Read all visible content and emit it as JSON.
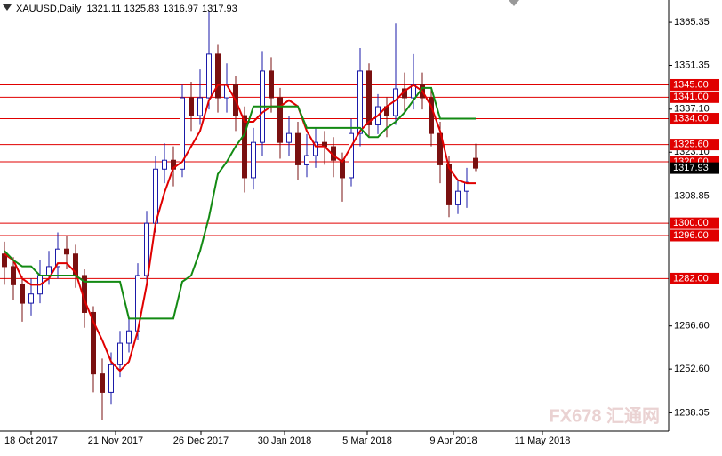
{
  "chart_data": {
    "type": "candlestick",
    "symbol": "XAUUSD,Daily",
    "x": [
      0,
      1,
      2,
      3,
      4,
      5,
      6,
      7,
      8,
      9,
      10,
      11,
      12,
      13,
      14,
      15,
      16,
      17,
      18,
      19,
      20,
      21,
      22,
      23,
      24,
      25,
      26,
      27,
      28,
      29,
      30,
      31,
      32,
      33,
      34,
      35,
      36,
      37,
      38,
      39,
      40,
      41,
      42,
      43,
      44,
      45,
      46,
      47,
      48,
      49,
      50,
      51,
      52,
      53
    ],
    "open": [
      1290.0,
      1285.9,
      1280.0,
      1274.0,
      1277.0,
      1283.0,
      1285.9,
      1291.6,
      1290.0,
      1283.0,
      1271.0,
      1251.0,
      1245.0,
      1254.0,
      1261.0,
      1265.0,
      1283.0,
      1300.0,
      1317.6,
      1320.5,
      1317.6,
      1340.8,
      1335.0,
      1340.8,
      1355.0,
      1340.8,
      1345.0,
      1335.0,
      1314.8,
      1326.3,
      1349.5,
      1340.8,
      1326.3,
      1329.2,
      1319.0,
      1322.0,
      1326.3,
      1324.9,
      1320.5,
      1314.8,
      1329.2,
      1349.5,
      1332.0,
      1337.9,
      1335.0,
      1343.7,
      1340.8,
      1345.0,
      1340.8,
      1329.2,
      1319.0,
      1306.0,
      1310.4,
      1321.11
    ],
    "high": [
      1294,
      1289,
      1283,
      1282,
      1288,
      1291,
      1297,
      1296,
      1293,
      1285,
      1273,
      1256,
      1258,
      1265,
      1270,
      1287,
      1304,
      1322,
      1326,
      1325,
      1345,
      1346,
      1350,
      1369,
      1358,
      1352,
      1348,
      1338,
      1331,
      1356,
      1354,
      1344,
      1335,
      1333,
      1329,
      1331,
      1330,
      1328,
      1323,
      1334,
      1357,
      1352,
      1342,
      1341,
      1365,
      1349,
      1355,
      1349,
      1344,
      1333,
      1322,
      1314,
      1318,
      1325.83
    ],
    "low": [
      1280,
      1275,
      1268,
      1270,
      1274,
      1280,
      1282,
      1285,
      1279,
      1266,
      1245,
      1236,
      1241,
      1250,
      1258,
      1262,
      1280,
      1297,
      1313,
      1312,
      1315,
      1330,
      1332,
      1337,
      1336,
      1336,
      1330,
      1310,
      1311,
      1322,
      1336,
      1321,
      1322,
      1314,
      1315,
      1318,
      1319,
      1315,
      1307,
      1312,
      1325,
      1328,
      1329,
      1328,
      1332,
      1336,
      1337,
      1337,
      1325,
      1313,
      1302,
      1303,
      1305,
      1316.97
    ],
    "close": [
      1285.9,
      1280.0,
      1274.0,
      1277.0,
      1283.0,
      1285.9,
      1291.6,
      1290.0,
      1283.0,
      1271.0,
      1251.0,
      1245.0,
      1254.0,
      1261.0,
      1265.0,
      1283.0,
      1300.0,
      1317.6,
      1320.5,
      1317.6,
      1340.8,
      1335.0,
      1340.8,
      1355.0,
      1340.8,
      1345.0,
      1335.0,
      1314.8,
      1326.3,
      1349.5,
      1340.8,
      1326.3,
      1329.2,
      1319.0,
      1322.0,
      1326.3,
      1324.9,
      1320.5,
      1314.8,
      1329.2,
      1349.5,
      1332.0,
      1337.9,
      1335.0,
      1343.7,
      1340.8,
      1345.0,
      1340.8,
      1329.2,
      1319.0,
      1306.0,
      1310.4,
      1313.3,
      1317.93
    ],
    "up_color": "#1a1aa8",
    "down_color": "#7a1010",
    "lines": [
      {
        "color": "#e00000",
        "values": [
          1290,
          1288,
          1282,
          1280,
          1280,
          1282,
          1287,
          1287,
          1284,
          1275,
          1268,
          1262,
          1255,
          1252,
          1255,
          1265,
          1280,
          1300,
          1310,
          1318,
          1320,
          1325,
          1330,
          1340,
          1345,
          1345,
          1340,
          1333,
          1333,
          1336,
          1338,
          1338,
          1340,
          1338,
          1330,
          1325,
          1325,
          1322,
          1320,
          1325,
          1330,
          1333,
          1335,
          1338,
          1340,
          1343,
          1345,
          1343,
          1338,
          1330,
          1318,
          1314,
          1313,
          1313
        ]
      },
      {
        "color": "#138a13",
        "values": [
          1291,
          1288,
          1286,
          1286,
          1283,
          1283,
          1283,
          1283,
          1283,
          1281,
          1281,
          1281,
          1281,
          1281,
          1269,
          1269,
          1269,
          1269,
          1269,
          1269,
          1281,
          1283,
          1291,
          1302,
          1316,
          1320,
          1325,
          1329,
          1338,
          1338,
          1338,
          1338,
          1338,
          1338,
          1331,
          1331,
          1331,
          1331,
          1331,
          1331,
          1331,
          1328,
          1328,
          1331,
          1333,
          1336,
          1340,
          1344,
          1344,
          1334,
          1334,
          1334,
          1334,
          1334
        ]
      }
    ],
    "levels": [
      {
        "value": 1345,
        "label": "1345.00"
      },
      {
        "value": 1341,
        "label": "1341.00"
      },
      {
        "value": 1334,
        "label": "1334.00"
      },
      {
        "value": 1325.6,
        "label": "1325.60"
      },
      {
        "value": 1320,
        "label": "1320.00"
      },
      {
        "value": 1300,
        "label": "1300.00"
      },
      {
        "value": 1296,
        "label": "1296.00"
      },
      {
        "value": 1282,
        "label": "1282.00"
      }
    ],
    "level_color": "#e00000",
    "xlim": [
      -0.5,
      74.7
    ],
    "xticks": [
      {
        "value": 3,
        "label": "18 Oct 2017"
      },
      {
        "value": 12.5,
        "label": "21 Nov 2017"
      },
      {
        "value": 22.1,
        "label": "26 Dec 2017"
      },
      {
        "value": 31.5,
        "label": "30 Jan 2018"
      },
      {
        "value": 40.8,
        "label": "5 Mar 2018"
      },
      {
        "value": 50.5,
        "label": "9 Apr 2018"
      },
      {
        "value": 60.5,
        "label": "11 May 2018"
      }
    ],
    "ylim": [
      1232.4,
      1372.6
    ],
    "yticks": [
      1238.35,
      {
        "value": 1252.6,
        "label": "1252.60"
      },
      {
        "value": 1266.6,
        "label": "1266.60"
      },
      1308.85,
      {
        "value": 1323.1,
        "label": "1323.10"
      },
      {
        "value": 1337.1,
        "label": "1337.10"
      },
      1351.35,
      1365.35
    ],
    "watermark": "FX678 汇通网"
  }
}
